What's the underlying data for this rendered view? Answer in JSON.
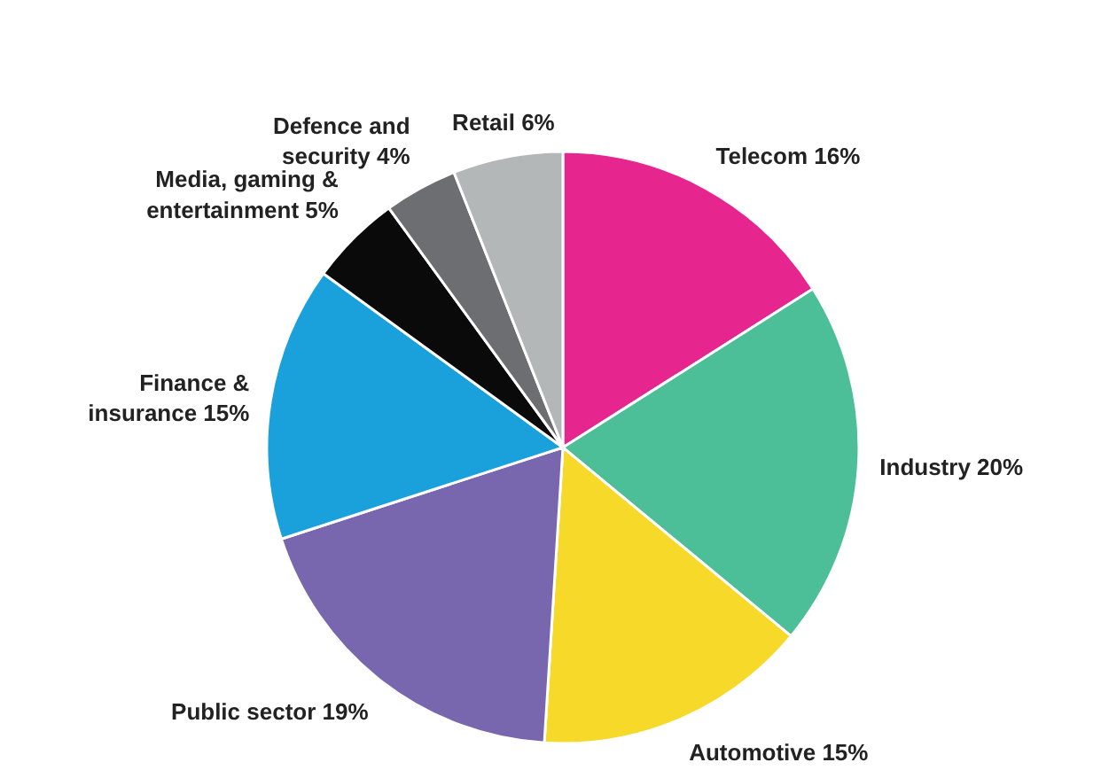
{
  "chart_data": {
    "type": "pie",
    "categories": [
      "Telecom",
      "Industry",
      "Automotive",
      "Public sector",
      "Finance & insurance",
      "Media, gaming & entertainment",
      "Defence and security",
      "Retail"
    ],
    "values": [
      16,
      20,
      15,
      19,
      15,
      5,
      4,
      6
    ],
    "value_labels": [
      "16%",
      "20%",
      "15%",
      "19%",
      "15%",
      "5%",
      "4%",
      "6%"
    ],
    "colors": [
      "#e6258f",
      "#4dbf98",
      "#f7d92a",
      "#7866ae",
      "#1aa0db",
      "#0a0a0a",
      "#6d6e71",
      "#b4b7b8"
    ]
  }
}
